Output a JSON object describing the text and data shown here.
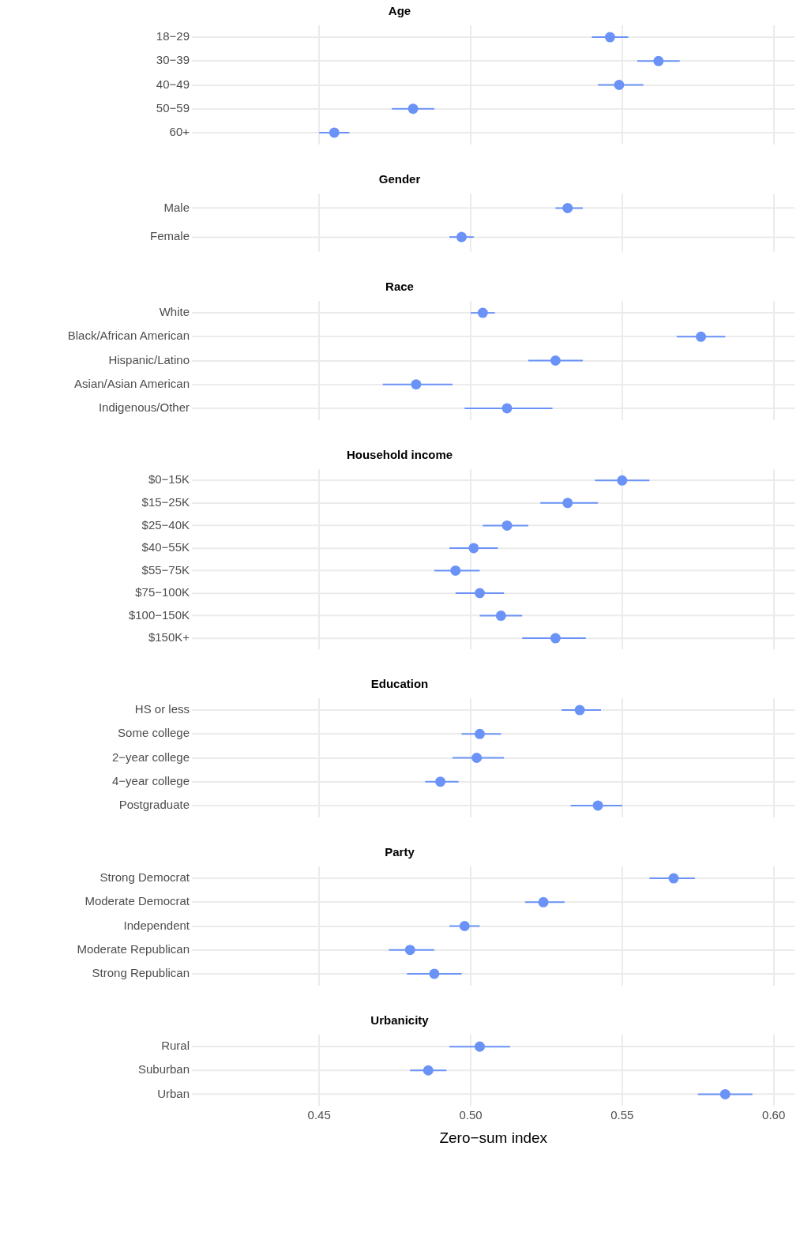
{
  "chart_data": [
    {
      "type": "scatter",
      "orientation": "horizontal",
      "title": "Age",
      "categories": [
        "18−29",
        "30−39",
        "40−49",
        "50−59",
        "60+"
      ],
      "values": [
        0.546,
        0.562,
        0.549,
        0.481,
        0.455
      ],
      "errors": [
        [
          0.54,
          0.552
        ],
        [
          0.555,
          0.569
        ],
        [
          0.542,
          0.557
        ],
        [
          0.474,
          0.488
        ],
        [
          0.45,
          0.46
        ]
      ],
      "color": "#6b93f7",
      "xlim": [
        0.408,
        0.607
      ],
      "xticks": [
        0.45,
        0.5,
        0.55,
        0.6
      ],
      "grid": true,
      "marker": "circle",
      "tick_labels": "y"
    },
    {
      "type": "scatter",
      "orientation": "horizontal",
      "title": "Gender",
      "categories": [
        "Male",
        "Female"
      ],
      "values": [
        0.532,
        0.497
      ],
      "errors": [
        [
          0.528,
          0.537
        ],
        [
          0.493,
          0.501
        ]
      ],
      "color": "#6b93f7",
      "xlim": [
        0.408,
        0.607
      ],
      "xticks": [
        0.45,
        0.5,
        0.55,
        0.6
      ],
      "grid": true,
      "marker": "circle",
      "tick_labels": "y"
    },
    {
      "type": "scatter",
      "orientation": "horizontal",
      "title": "Race",
      "categories": [
        "White",
        "Black/African American",
        "Hispanic/Latino",
        "Asian/Asian American",
        "Indigenous/Other"
      ],
      "values": [
        0.504,
        0.576,
        0.528,
        0.482,
        0.512
      ],
      "errors": [
        [
          0.5,
          0.508
        ],
        [
          0.568,
          0.584
        ],
        [
          0.519,
          0.537
        ],
        [
          0.471,
          0.494
        ],
        [
          0.498,
          0.527
        ]
      ],
      "color": "#6b93f7",
      "xlim": [
        0.408,
        0.607
      ],
      "xticks": [
        0.45,
        0.5,
        0.55,
        0.6
      ],
      "grid": true,
      "marker": "circle",
      "tick_labels": "y"
    },
    {
      "type": "scatter",
      "orientation": "horizontal",
      "title": "Household income",
      "categories": [
        "$0−15K",
        "$15−25K",
        "$25−40K",
        "$40−55K",
        "$55−75K",
        "$75−100K",
        "$100−150K",
        "$150K+"
      ],
      "values": [
        0.55,
        0.532,
        0.512,
        0.501,
        0.495,
        0.503,
        0.51,
        0.528
      ],
      "errors": [
        [
          0.541,
          0.559
        ],
        [
          0.523,
          0.542
        ],
        [
          0.504,
          0.519
        ],
        [
          0.493,
          0.509
        ],
        [
          0.488,
          0.503
        ],
        [
          0.495,
          0.511
        ],
        [
          0.503,
          0.517
        ],
        [
          0.517,
          0.538
        ]
      ],
      "color": "#6b93f7",
      "xlim": [
        0.408,
        0.607
      ],
      "xticks": [
        0.45,
        0.5,
        0.55,
        0.6
      ],
      "grid": true,
      "marker": "circle",
      "tick_labels": "y"
    },
    {
      "type": "scatter",
      "orientation": "horizontal",
      "title": "Education",
      "categories": [
        "HS or less",
        "Some college",
        "2−year college",
        "4−year college",
        "Postgraduate"
      ],
      "values": [
        0.536,
        0.503,
        0.502,
        0.49,
        0.542
      ],
      "errors": [
        [
          0.53,
          0.543
        ],
        [
          0.497,
          0.51
        ],
        [
          0.494,
          0.511
        ],
        [
          0.485,
          0.496
        ],
        [
          0.533,
          0.55
        ]
      ],
      "color": "#6b93f7",
      "xlim": [
        0.408,
        0.607
      ],
      "xticks": [
        0.45,
        0.5,
        0.55,
        0.6
      ],
      "grid": true,
      "marker": "circle",
      "tick_labels": "y"
    },
    {
      "type": "scatter",
      "orientation": "horizontal",
      "title": "Party",
      "categories": [
        "Strong Democrat",
        "Moderate Democrat",
        "Independent",
        "Moderate Republican",
        "Strong Republican"
      ],
      "values": [
        0.567,
        0.524,
        0.498,
        0.48,
        0.488
      ],
      "errors": [
        [
          0.559,
          0.574
        ],
        [
          0.518,
          0.531
        ],
        [
          0.493,
          0.503
        ],
        [
          0.473,
          0.488
        ],
        [
          0.479,
          0.497
        ]
      ],
      "color": "#6b93f7",
      "xlim": [
        0.408,
        0.607
      ],
      "xticks": [
        0.45,
        0.5,
        0.55,
        0.6
      ],
      "grid": true,
      "marker": "circle",
      "tick_labels": "y"
    },
    {
      "type": "scatter",
      "orientation": "horizontal",
      "title": "Urbanicity",
      "categories": [
        "Rural",
        "Suburban",
        "Urban"
      ],
      "values": [
        0.503,
        0.486,
        0.584
      ],
      "errors": [
        [
          0.493,
          0.513
        ],
        [
          0.48,
          0.492
        ],
        [
          0.575,
          0.593
        ]
      ],
      "color": "#6b93f7",
      "xlim": [
        0.408,
        0.607
      ],
      "xticks": [
        {
          "value": 0.45,
          "label": "0.45"
        },
        {
          "value": 0.5,
          "label": "0.50"
        },
        {
          "value": 0.55,
          "label": "0.55"
        },
        {
          "value": 0.6,
          "label": "0.60"
        }
      ],
      "grid": true,
      "marker": "circle",
      "xlabel": "Zero−sum index"
    }
  ]
}
